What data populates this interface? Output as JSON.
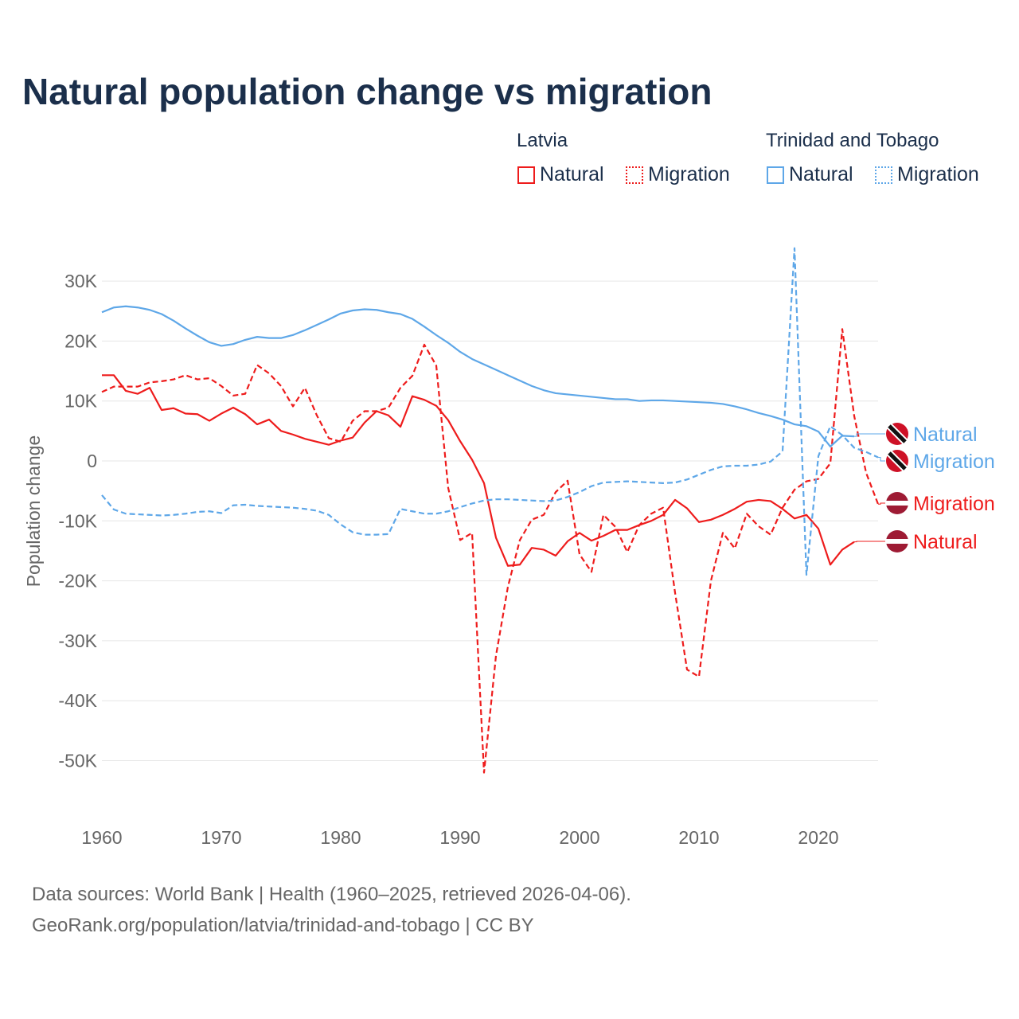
{
  "title": "Natural population change vs migration",
  "legend": {
    "groups": [
      {
        "name": "Latvia",
        "color": "#ee1c1c",
        "items": [
          "Natural",
          "Migration"
        ]
      },
      {
        "name": "Trinidad and Tobago",
        "color": "#5ea7e8",
        "items": [
          "Natural",
          "Migration"
        ]
      }
    ]
  },
  "footer": {
    "line1": "Data sources: World Bank | Health (1960–2025, retrieved 2026-04-06).",
    "line2": "GeoRank.org/population/latvia/trinidad-and-tobago | CC BY"
  },
  "chart_data": {
    "type": "line",
    "title": "Natural population change vs migration",
    "xlabel": "",
    "ylabel": "Population change",
    "xlim": [
      1960,
      2025
    ],
    "ylim": [
      -55000,
      37000
    ],
    "xticks": [
      1960,
      1970,
      1980,
      1990,
      2000,
      2010,
      2020
    ],
    "xtick_labels": [
      "1960",
      "1970",
      "1980",
      "1990",
      "2000",
      "2010",
      "2020"
    ],
    "yticks": [
      30000,
      20000,
      10000,
      0,
      -10000,
      -20000,
      -30000,
      -40000,
      -50000
    ],
    "ytick_labels": [
      "30K",
      "20K",
      "10K",
      "0",
      "-10K",
      "-20K",
      "-30K",
      "-40K",
      "-50K"
    ],
    "grid": true,
    "series": [
      {
        "name": "Latvia Natural",
        "label": "Natural",
        "country": "Latvia",
        "color": "#ee1c1c",
        "dash": false,
        "start": 1960,
        "values": [
          14.3,
          14.3,
          11.7,
          11.2,
          12.2,
          8.5,
          8.8,
          7.9,
          7.8,
          6.7,
          7.9,
          8.9,
          7.8,
          6.1,
          6.9,
          5.0,
          4.4,
          3.7,
          3.2,
          2.7,
          3.4,
          3.9,
          6.4,
          8.3,
          7.6,
          5.7,
          10.8,
          10.2,
          9.2,
          6.8,
          3.3,
          0.2,
          -3.7,
          -12.8,
          -17.5,
          -17.3,
          -14.5,
          -14.8,
          -15.8,
          -13.4,
          -12.0,
          -13.3,
          -12.5,
          -11.5,
          -11.5,
          -10.7,
          -10.0,
          -9.0,
          -6.5,
          -7.9,
          -10.2,
          -9.8,
          -9.0,
          -8.0,
          -6.8,
          -6.5,
          -6.7,
          -8.0,
          -9.6,
          -9.0,
          -11.3,
          -17.3,
          -14.8,
          -13.5
        ]
      },
      {
        "name": "Latvia Migration",
        "label": "Migration",
        "country": "Latvia",
        "color": "#ee1c1c",
        "dash": true,
        "start": 1960,
        "values": [
          11.5,
          12.4,
          12.4,
          12.4,
          13.1,
          13.3,
          13.6,
          14.3,
          13.6,
          13.8,
          12.5,
          10.9,
          11.2,
          16.0,
          14.6,
          12.5,
          9.1,
          12.2,
          7.6,
          3.8,
          3.2,
          6.7,
          8.3,
          8.3,
          8.9,
          12.2,
          14.2,
          19.4,
          15.9,
          -4.5,
          -13.2,
          -12.0,
          -52.0,
          -32.5,
          -21.0,
          -13.2,
          -9.8,
          -9.0,
          -5.2,
          -3.3,
          -15.6,
          -18.5,
          -9.0,
          -11.0,
          -15.2,
          -10.7,
          -8.8,
          -7.8,
          -22.0,
          -34.8,
          -36.0,
          -20.0,
          -12.0,
          -14.6,
          -8.8,
          -10.9,
          -12.3,
          -7.8,
          -4.8,
          -3.4,
          -3.0,
          -0.4,
          22.0,
          7.5,
          -2.0,
          -7.2
        ]
      },
      {
        "name": "Trinidad and Tobago Natural",
        "label": "Natural",
        "country": "Trinidad and Tobago",
        "color": "#5ea7e8",
        "dash": false,
        "start": 1960,
        "values": [
          24.8,
          25.6,
          25.8,
          25.6,
          25.2,
          24.5,
          23.4,
          22.1,
          20.9,
          19.8,
          19.2,
          19.5,
          20.2,
          20.7,
          20.5,
          20.5,
          21.0,
          21.8,
          22.7,
          23.6,
          24.6,
          25.1,
          25.3,
          25.2,
          24.8,
          24.5,
          23.7,
          22.4,
          21.0,
          19.7,
          18.2,
          17.0,
          16.1,
          15.2,
          14.3,
          13.4,
          12.5,
          11.8,
          11.3,
          11.1,
          10.9,
          10.7,
          10.5,
          10.3,
          10.3,
          10.0,
          10.1,
          10.1,
          10.0,
          9.9,
          9.8,
          9.7,
          9.5,
          9.1,
          8.6,
          8.0,
          7.5,
          6.9,
          6.1,
          5.8,
          4.9,
          2.4,
          4.2,
          4.1
        ]
      },
      {
        "name": "Trinidad and Tobago Migration",
        "label": "Migration",
        "country": "Trinidad and Tobago",
        "color": "#5ea7e8",
        "dash": true,
        "start": 1960,
        "values": [
          -5.7,
          -8.1,
          -8.8,
          -8.9,
          -9.0,
          -9.1,
          -9.0,
          -8.8,
          -8.5,
          -8.4,
          -8.7,
          -7.4,
          -7.3,
          -7.5,
          -7.6,
          -7.7,
          -7.8,
          -8.0,
          -8.3,
          -9.0,
          -10.6,
          -11.9,
          -12.3,
          -12.3,
          -12.2,
          -8.0,
          -8.4,
          -8.8,
          -8.8,
          -8.4,
          -7.7,
          -7.1,
          -6.6,
          -6.4,
          -6.4,
          -6.5,
          -6.6,
          -6.7,
          -6.6,
          -6.0,
          -5.2,
          -4.2,
          -3.6,
          -3.5,
          -3.4,
          -3.5,
          -3.6,
          -3.7,
          -3.6,
          -3.1,
          -2.3,
          -1.5,
          -0.9,
          -0.8,
          -0.8,
          -0.6,
          -0.1,
          1.6,
          35.5,
          -19.0,
          0.8,
          5.8,
          4.3,
          2.2,
          1.5,
          0.6
        ]
      }
    ],
    "value_unit": "thousands",
    "end_labels": [
      {
        "text": "Natural",
        "country": "Trinidad and Tobago",
        "flag": "trinidad-and-tobago-flag-icon"
      },
      {
        "text": "Migration",
        "country": "Trinidad and Tobago",
        "flag": "trinidad-and-tobago-flag-icon"
      },
      {
        "text": "Migration",
        "country": "Latvia",
        "flag": "latvia-flag-icon"
      },
      {
        "text": "Natural",
        "country": "Latvia",
        "flag": "latvia-flag-icon"
      }
    ]
  }
}
